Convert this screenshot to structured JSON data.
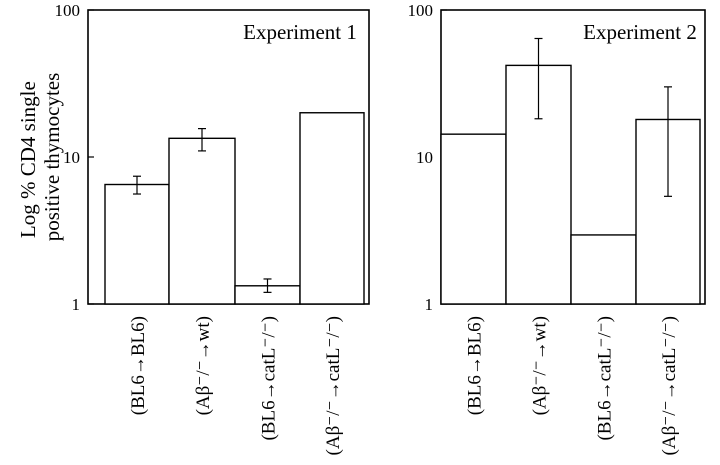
{
  "chart_data": [
    {
      "type": "bar",
      "title": "Experiment 1",
      "ylabel_lines": [
        "Log % CD4 single",
        "positive thymocytes"
      ],
      "yscale": "log",
      "ylim": [
        1,
        100
      ],
      "ytick_labels": [
        "1",
        "10",
        "100"
      ],
      "categories": [
        "(BL6→BL6)",
        "(Aβ⁻/⁻→wt)",
        "(BL6→catL⁻/⁻)",
        "(Aβ⁻/⁻→catL⁻/⁻)"
      ],
      "values": [
        6.5,
        13.4,
        1.33,
        20
      ],
      "error_low": [
        5.6,
        11.0,
        1.2,
        null
      ],
      "error_high": [
        7.4,
        15.6,
        1.48,
        null
      ]
    },
    {
      "type": "bar",
      "title": "Experiment 2",
      "yscale": "log",
      "ylim": [
        1,
        100
      ],
      "ytick_labels": [
        "1",
        "10",
        "100"
      ],
      "categories": [
        "(BL6→BL6)",
        "(Aβ⁻/⁻→wt)",
        "(BL6→catL⁻/⁻)",
        "(Aβ⁻/⁻→catL⁻/⁻)"
      ],
      "values": [
        14.3,
        42,
        2.95,
        18
      ],
      "error_low": [
        null,
        18.2,
        null,
        5.4
      ],
      "error_high": [
        null,
        64,
        null,
        30
      ]
    }
  ]
}
